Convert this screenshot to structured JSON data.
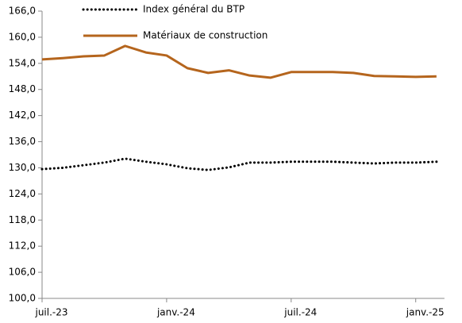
{
  "chart_data": {
    "type": "line",
    "categories": [
      "juil.-23",
      null,
      null,
      null,
      null,
      null,
      "janv.-24",
      null,
      null,
      null,
      null,
      null,
      "juil.-24",
      null,
      null,
      null,
      null,
      null,
      "janv.-25",
      null
    ],
    "series": [
      {
        "name": "Index général du BTP",
        "color": "#000000",
        "dash": "dotted",
        "values": [
          129.7,
          130.0,
          130.6,
          131.2,
          132.1,
          131.4,
          130.8,
          129.9,
          129.5,
          130.1,
          131.2,
          131.2,
          131.4,
          131.4,
          131.4,
          131.2,
          131.0,
          131.2,
          131.2,
          131.4
        ]
      },
      {
        "name": "Matériaux de construction",
        "color": "#b5651d",
        "dash": "solid",
        "values": [
          154.9,
          155.2,
          155.6,
          155.8,
          158.0,
          156.5,
          155.8,
          152.9,
          151.8,
          152.4,
          151.2,
          150.7,
          152.0,
          152.0,
          152.0,
          151.8,
          151.1,
          151.0,
          150.9,
          151.0
        ]
      }
    ],
    "ylim": [
      100,
      166
    ],
    "yticks": [
      {
        "value": 100,
        "label": "100,0"
      },
      {
        "value": 106,
        "label": "106,0"
      },
      {
        "value": 112,
        "label": "112,0"
      },
      {
        "value": 118,
        "label": "118,0"
      },
      {
        "value": 124,
        "label": "124,0"
      },
      {
        "value": 130,
        "label": "130,0"
      },
      {
        "value": 136,
        "label": "136,0"
      },
      {
        "value": 142,
        "label": "142,0"
      },
      {
        "value": 148,
        "label": "148,0"
      },
      {
        "value": 154,
        "label": "154,0"
      },
      {
        "value": 160,
        "label": "160,0"
      },
      {
        "value": 166,
        "label": "166,0"
      }
    ],
    "grid": false
  }
}
